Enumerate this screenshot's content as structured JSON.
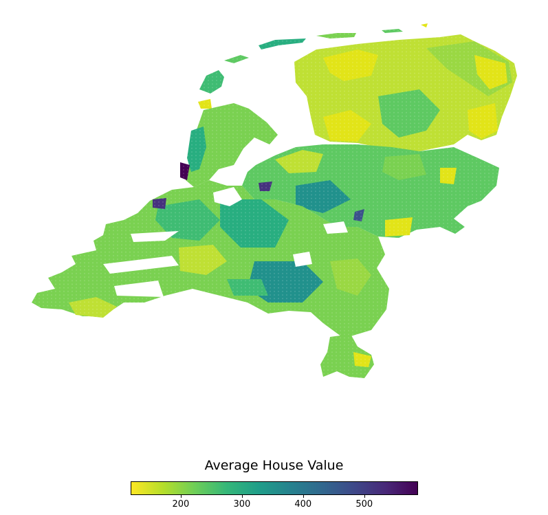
{
  "legend": {
    "title": "Average House Value",
    "ticks": [
      "200",
      "300",
      "400",
      "500"
    ],
    "tick_values": [
      200,
      300,
      400,
      500
    ],
    "min": 118,
    "max": 588,
    "colormap": "viridis_r",
    "colors": [
      "#fde725",
      "#b5de2b",
      "#6ece58",
      "#35b779",
      "#1f9e89",
      "#26828e",
      "#31688e",
      "#3e4989",
      "#482878",
      "#440154"
    ]
  },
  "map_colors": {
    "yellow": "#e2e418",
    "yellow_green": "#bfe034",
    "light_green": "#9ad843",
    "green": "#7ad151",
    "mid_green": "#5ec962",
    "sea_green": "#3fbc73",
    "teal": "#28ae80",
    "dark_teal": "#21918c",
    "blue_teal": "#2c728e",
    "dark_blue": "#3b528b",
    "purple": "#46327e",
    "dark_purple": "#440154"
  }
}
